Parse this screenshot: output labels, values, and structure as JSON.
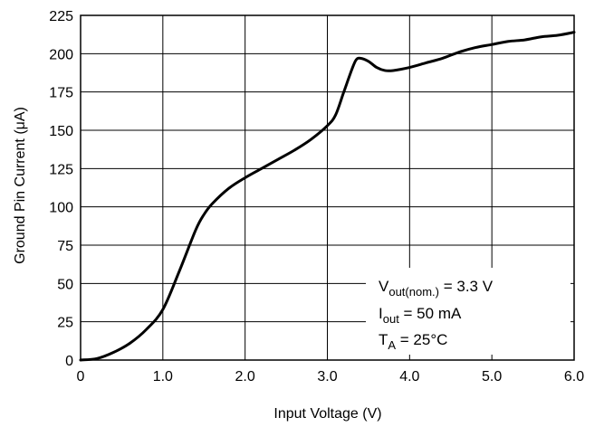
{
  "chart_data": {
    "type": "line",
    "title": "",
    "xlabel": "Input Voltage (V)",
    "ylabel": "Ground Pin Current (μA)",
    "xlim": [
      0,
      6
    ],
    "ylim": [
      0,
      225
    ],
    "grid": true,
    "x_ticks": [
      "0",
      "1.0",
      "2.0",
      "3.0",
      "4.0",
      "5.0",
      "6.0"
    ],
    "y_ticks": [
      "0",
      "25",
      "50",
      "75",
      "100",
      "125",
      "150",
      "175",
      "200",
      "225"
    ],
    "series": [
      {
        "x": [
          0,
          0.2,
          0.4,
          0.6,
          0.8,
          1.0,
          1.2,
          1.4,
          1.5,
          1.6,
          1.8,
          2.0,
          2.2,
          2.4,
          2.6,
          2.8,
          3.0,
          3.1,
          3.2,
          3.3,
          3.35,
          3.4,
          3.5,
          3.6,
          3.7,
          3.8,
          4.0,
          4.2,
          4.4,
          4.6,
          4.8,
          5.0,
          5.2,
          5.4,
          5.6,
          5.8,
          6.0
        ],
        "y": [
          0,
          1,
          5,
          11,
          20,
          33,
          58,
          85,
          95,
          102,
          112,
          119,
          125,
          131,
          137,
          144,
          153,
          160,
          175,
          190,
          196,
          197,
          195,
          191,
          189,
          189,
          191,
          194,
          197,
          201,
          204,
          206,
          208,
          209,
          211,
          212,
          214
        ]
      }
    ],
    "annotations": {
      "vout": {
        "main": "V",
        "sub": "out(nom.)",
        "rest": " = 3.3 V"
      },
      "iout": {
        "main": "I",
        "sub": "out",
        "rest": " = 50 mA"
      },
      "ta": {
        "main": "T",
        "sub": "A",
        "rest": " = 25°C"
      }
    },
    "annotation_placement": "lower-right"
  }
}
